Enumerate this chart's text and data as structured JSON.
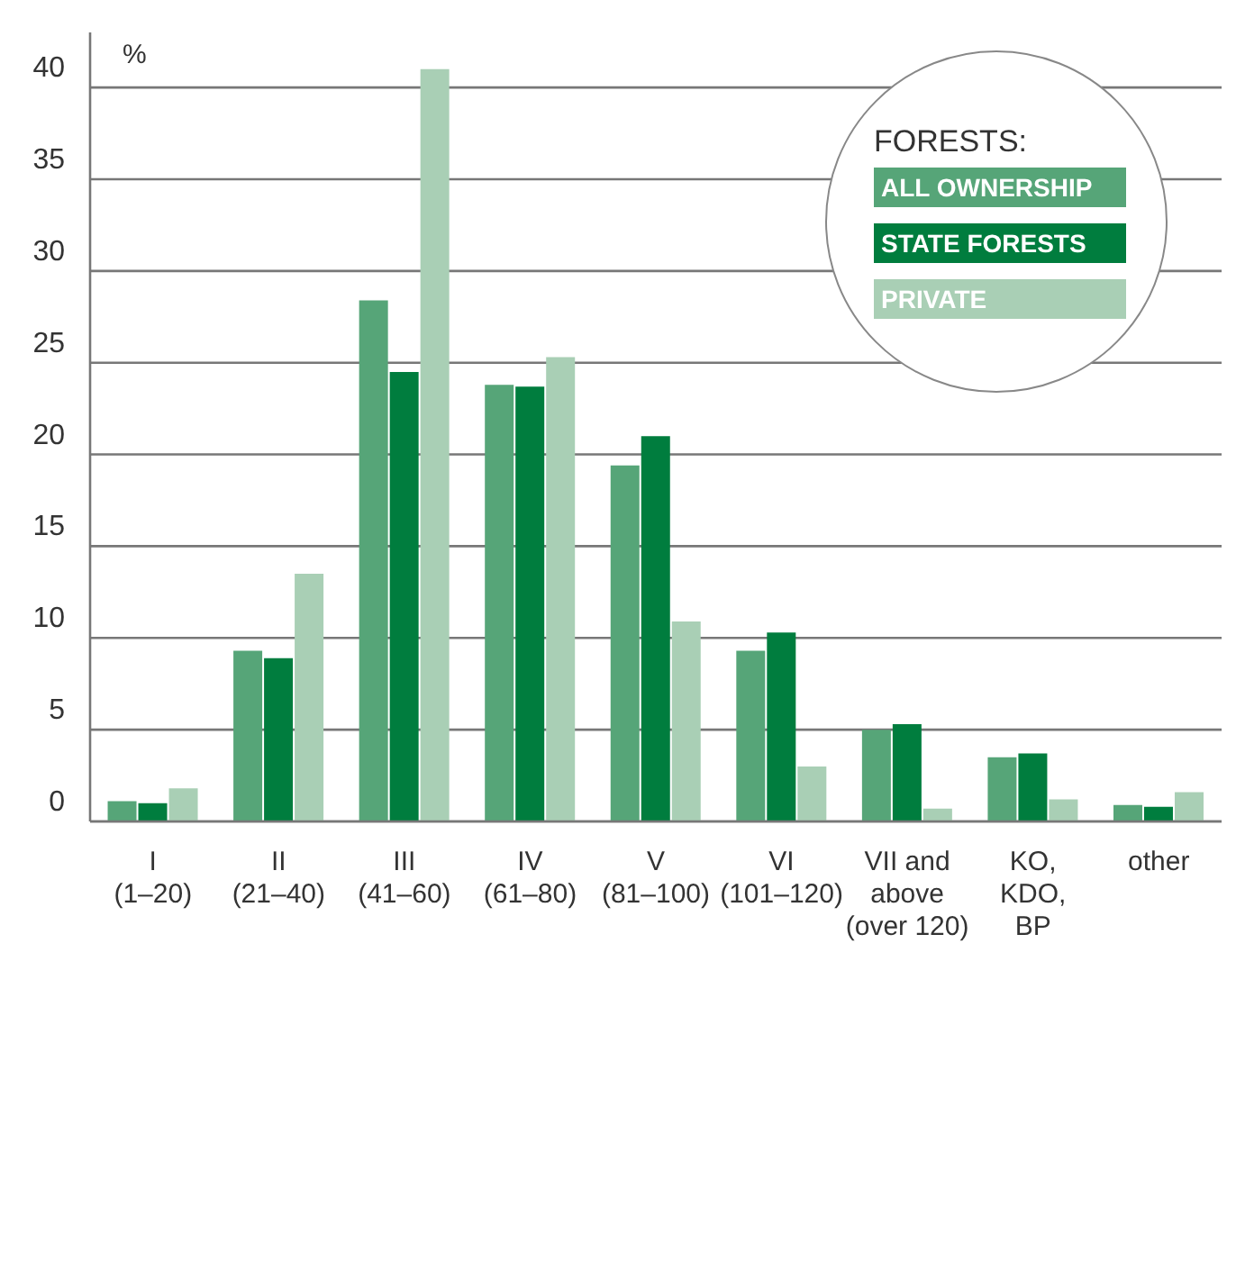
{
  "chart_data": {
    "type": "bar",
    "ylabel": "%",
    "legend_title": "FORESTS:",
    "categories": [
      "I\n(1–20)",
      "II\n(21–40)",
      "III\n(41–60)",
      "IV\n(61–80)",
      "V\n(81–100)",
      "VI\n(101–120)",
      "VII and\nabove\n(over 120)",
      "KO,\nKDO,\nBP",
      "other"
    ],
    "series": [
      {
        "name": "ALL OWNERSHIP",
        "color": "#56a578",
        "values": [
          1.1,
          9.3,
          28.4,
          23.8,
          19.4,
          9.3,
          5.0,
          3.5,
          0.9
        ]
      },
      {
        "name": "STATE FORESTS",
        "color": "#007d3e",
        "values": [
          1.0,
          8.9,
          24.5,
          23.7,
          21.0,
          10.3,
          5.3,
          3.7,
          0.8
        ]
      },
      {
        "name": "PRIVATE",
        "color": "#a9cfb5",
        "values": [
          1.8,
          13.5,
          41.0,
          25.3,
          10.9,
          3.0,
          0.7,
          1.2,
          1.6
        ]
      }
    ],
    "ylim": [
      0,
      43
    ],
    "yticks": [
      0,
      5,
      10,
      15,
      20,
      25,
      30,
      35,
      40
    ],
    "grid": "y",
    "legend": "top right"
  }
}
